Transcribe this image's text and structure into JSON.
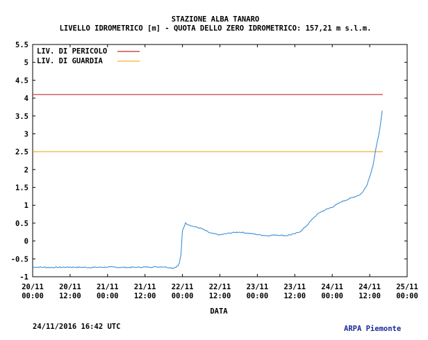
{
  "chart_data": {
    "type": "line",
    "title": "STAZIONE ALBA TANARO",
    "subtitle": "LIVELLO IDROMETRICO [m] - QUOTA DELLO ZERO IDROMETRICO: 157,21  m s.l.m.",
    "xlabel": "DATA",
    "ylabel": "",
    "ylim": [
      -1,
      5.5
    ],
    "yticks": [
      "5.5",
      "5",
      "4.5",
      "4",
      "3.5",
      "3",
      "2.5",
      "2",
      "1.5",
      "1",
      "0.5",
      "0",
      "-0.5",
      "-1"
    ],
    "xticks": [
      {
        "day": "20/11",
        "time": "00:00"
      },
      {
        "day": "20/11",
        "time": "12:00"
      },
      {
        "day": "21/11",
        "time": "00:00"
      },
      {
        "day": "21/11",
        "time": "12:00"
      },
      {
        "day": "22/11",
        "time": "00:00"
      },
      {
        "day": "22/11",
        "time": "12:00"
      },
      {
        "day": "23/11",
        "time": "00:00"
      },
      {
        "day": "23/11",
        "time": "12:00"
      },
      {
        "day": "24/11",
        "time": "00:00"
      },
      {
        "day": "24/11",
        "time": "12:00"
      },
      {
        "day": "25/11",
        "time": "00:00"
      }
    ],
    "legend_position": "top-left",
    "thresholds": [
      {
        "name": "LIV. DI PERICOLO",
        "value": 4.1,
        "color": "#c0282d"
      },
      {
        "name": "LIV. DI GUARDIA",
        "value": 2.5,
        "color": "#f0b030"
      }
    ],
    "series": [
      {
        "color": "#3a8fd8",
        "x": [
          "20/11 00:00",
          "20/11 06:00",
          "20/11 12:00",
          "20/11 18:00",
          "21/11 00:00",
          "21/11 06:00",
          "21/11 12:00",
          "21/11 18:00",
          "21/11 21:00",
          "21/11 22:00",
          "21/11 22:30",
          "21/11 23:00",
          "21/11 23:30",
          "22/11 00:00",
          "22/11 01:00",
          "22/11 03:00",
          "22/11 06:00",
          "22/11 09:00",
          "22/11 12:00",
          "22/11 15:00",
          "22/11 18:00",
          "22/11 21:00",
          "23/11 00:00",
          "23/11 03:00",
          "23/11 06:00",
          "23/11 09:00",
          "23/11 12:00",
          "23/11 14:00",
          "23/11 16:00",
          "23/11 18:00",
          "23/11 20:00",
          "23/11 22:00",
          "24/11 00:00",
          "24/11 03:00",
          "24/11 06:00",
          "24/11 09:00",
          "24/11 10:00",
          "24/11 11:00",
          "24/11 12:00",
          "24/11 13:00",
          "24/11 14:00",
          "24/11 15:00",
          "24/11 16:00"
        ],
        "values": [
          -0.73,
          -0.74,
          -0.73,
          -0.74,
          -0.73,
          -0.74,
          -0.73,
          -0.72,
          -0.76,
          -0.72,
          -0.7,
          -0.62,
          -0.4,
          0.3,
          0.5,
          0.42,
          0.35,
          0.22,
          0.17,
          0.22,
          0.25,
          0.22,
          0.18,
          0.15,
          0.17,
          0.15,
          0.2,
          0.28,
          0.45,
          0.65,
          0.8,
          0.88,
          0.95,
          1.1,
          1.2,
          1.3,
          1.4,
          1.55,
          1.8,
          2.1,
          2.6,
          3.0,
          3.65
        ]
      }
    ]
  },
  "footer": {
    "timestamp": "24/11/2016 16:42 UTC",
    "source": "ARPA Piemonte"
  }
}
